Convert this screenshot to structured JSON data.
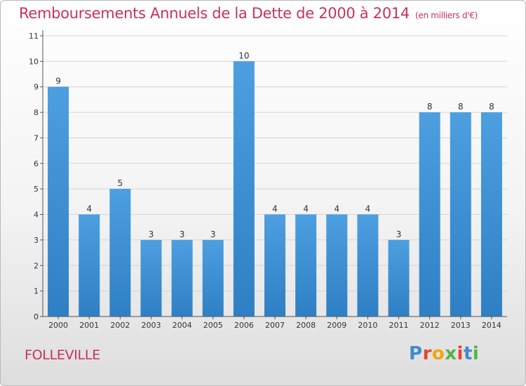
{
  "header": {
    "title": "Remboursements Annuels de la Dette de 2000 à 2014",
    "unit": "(en milliers d'€)"
  },
  "footer": {
    "commune": "FOLLEVILLE",
    "logo": "Proxiti",
    "logo_colors": [
      "#3f8ad1",
      "#e0462e",
      "#f2a50c",
      "#55b249",
      "#e0462e",
      "#3f8ad1",
      "#55b249"
    ]
  },
  "chart_data": {
    "type": "bar",
    "title": "Remboursements Annuels de la Dette de 2000 à 2014",
    "subtitle": "(en milliers d'€)",
    "xlabel": "",
    "ylabel": "",
    "categories": [
      "2000",
      "2001",
      "2002",
      "2003",
      "2004",
      "2005",
      "2006",
      "2007",
      "2008",
      "2009",
      "2010",
      "2011",
      "2012",
      "2013",
      "2014"
    ],
    "values": [
      9,
      4,
      5,
      3,
      3,
      3,
      10,
      4,
      4,
      4,
      4,
      3,
      8,
      8,
      8
    ],
    "ylim": [
      0,
      11
    ],
    "yticks": [
      0,
      1,
      2,
      3,
      4,
      5,
      6,
      7,
      8,
      9,
      10,
      11
    ],
    "grid": true,
    "bar_color": "#4d9fe0",
    "bar_color_dark": "#2f7fc4",
    "grid_color": "#d4d4d4"
  }
}
